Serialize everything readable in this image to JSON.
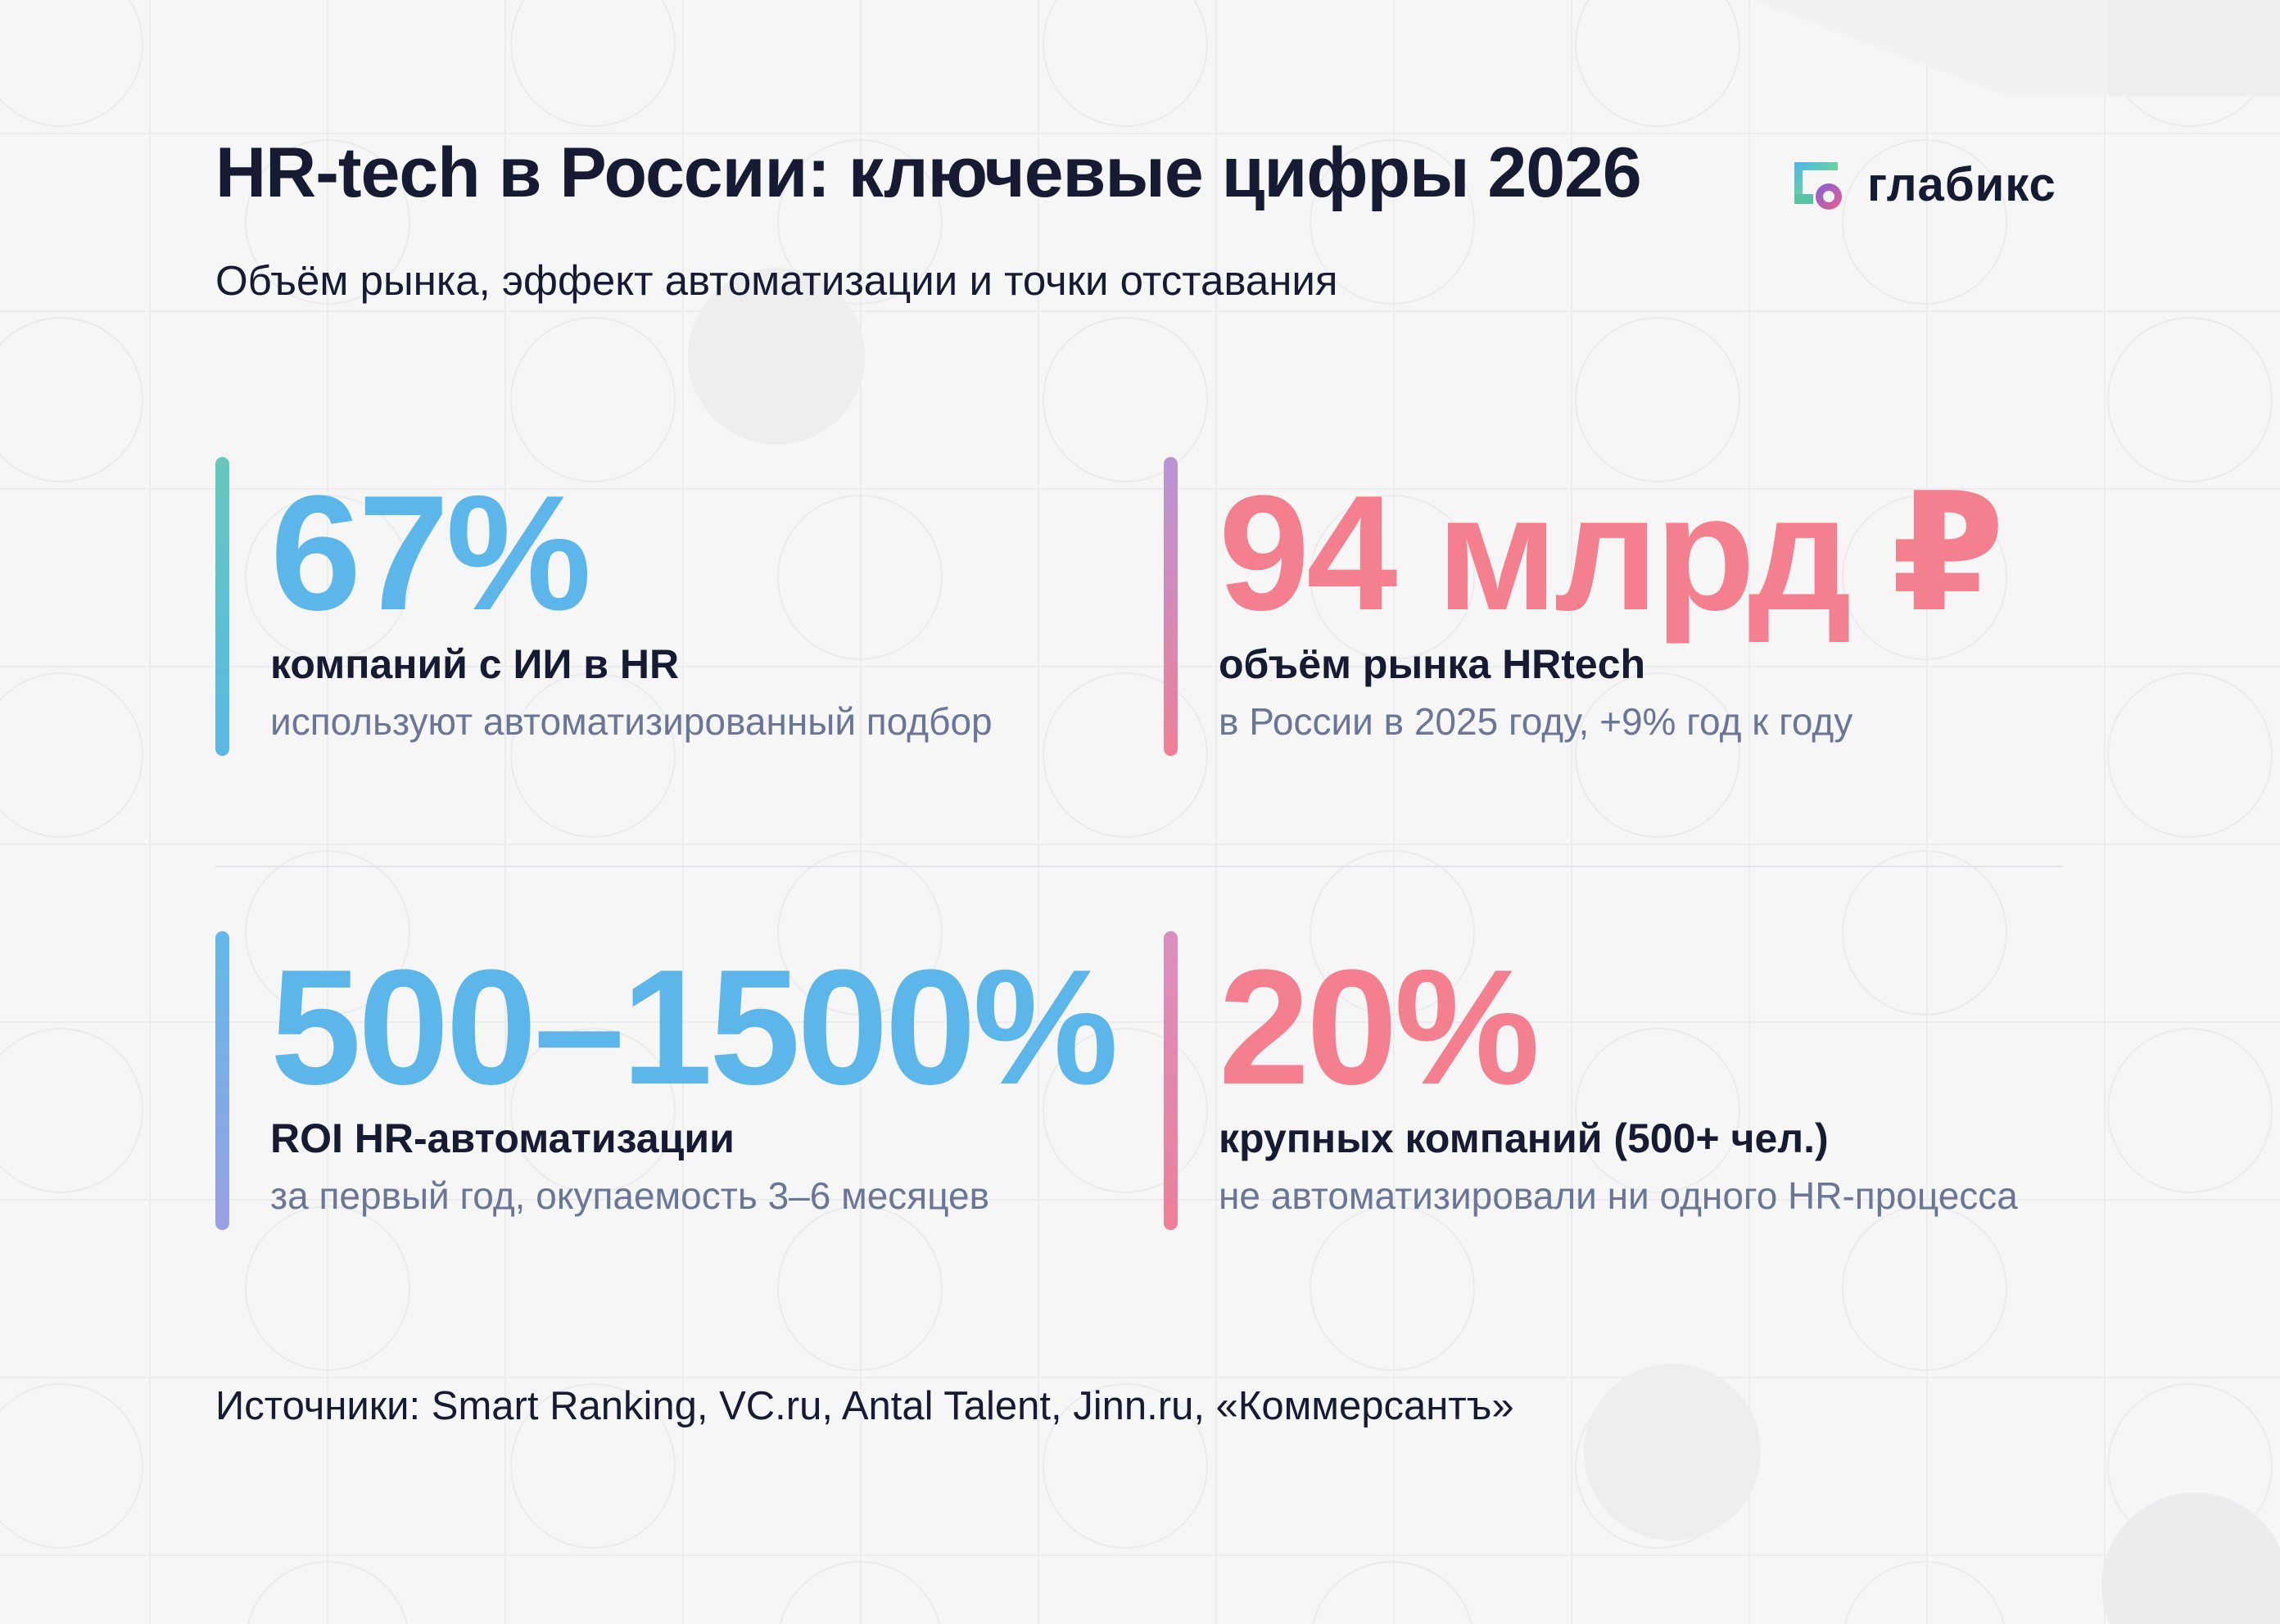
{
  "page": {
    "title": "HR-tech в России: ключевые цифры 2026",
    "subtitle": "Объём рынка, эффект автоматизации и точки отставания"
  },
  "brand": {
    "name": "глабикс",
    "logo_icon": "glabix-logo-icon"
  },
  "stats": [
    {
      "value": "67%",
      "label": "компаний с ИИ в HR",
      "note": "используют автоматизированный подбор",
      "accent_color": "#5db6ea"
    },
    {
      "value": "94 млрд ₽",
      "label": "объём рынка HRtech",
      "note": "в России в 2025 году, +9% год к году",
      "accent_color": "#f47f8f"
    },
    {
      "value": "500–1500%",
      "label": "ROI HR-автоматизации",
      "note": "за первый год, окупаемость 3–6 месяцев",
      "accent_color": "#5db6ea"
    },
    {
      "value": "20%",
      "label": "крупных компаний (500+ чел.)",
      "note": "не автоматизировали ни одного HR-процесса",
      "accent_color": "#f47f8f"
    }
  ],
  "sources": "Источники: Smart Ranking, VC.ru, Antal Talent, Jinn.ru, «Коммерсантъ»",
  "colors": {
    "background": "#f6f6f7",
    "text": "#161a33",
    "muted": "#6a7598",
    "blue": "#5db6ea",
    "pink": "#f47f8f"
  }
}
